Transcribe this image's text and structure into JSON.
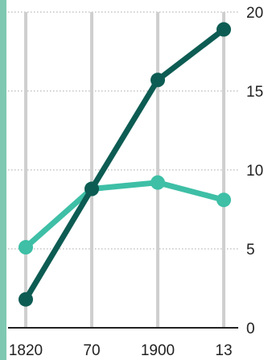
{
  "chart_data": {
    "type": "line",
    "categories": [
      "1820",
      "70",
      "1900",
      "13"
    ],
    "x_values": [
      1820,
      1870,
      1900,
      1913
    ],
    "series": [
      {
        "values": [
          1.8,
          8.8,
          15.7,
          18.9
        ],
        "color": "#0d5c53"
      },
      {
        "values": [
          5.1,
          8.8,
          9.2,
          8.1
        ],
        "color": "#3ebfa6"
      }
    ],
    "y_ticks": [
      0,
      5,
      10,
      15,
      20
    ],
    "y_tick_labels": [
      "0",
      "5",
      "10",
      "15",
      "20"
    ],
    "ylim": [
      0,
      20
    ],
    "grid": true,
    "left_border_color": "#7ec8b1",
    "gridline_color": "#cfcfcf"
  }
}
